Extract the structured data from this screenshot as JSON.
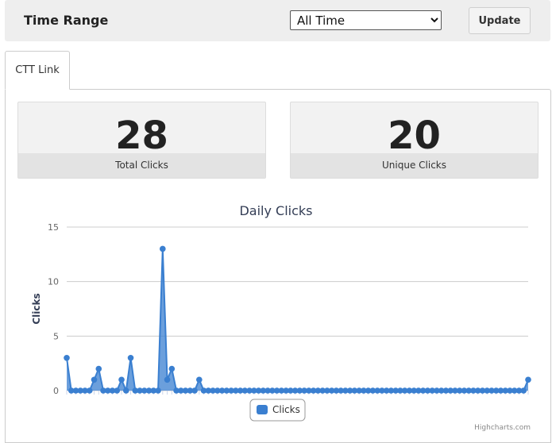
{
  "header": {
    "title": "Time Range",
    "range_selected": "All Time",
    "update_label": "Update"
  },
  "tabs": [
    {
      "label": "CTT Link"
    }
  ],
  "stats": {
    "total": {
      "value": "28",
      "label": "Total Clicks"
    },
    "unique": {
      "value": "20",
      "label": "Unique Clicks"
    }
  },
  "colors": {
    "series": "#3a7fd0",
    "fill": "#3a7fd0"
  },
  "chart_data": {
    "type": "area",
    "title": "Daily Clicks",
    "xlabel": "",
    "ylabel": "Clicks",
    "ylim": [
      0,
      15
    ],
    "yticks": [
      0,
      5,
      10,
      15
    ],
    "grid": true,
    "legend": "bottom-center",
    "credit": "Highcharts.com",
    "series": [
      {
        "name": "Clicks",
        "values": [
          3,
          0,
          0,
          0,
          0,
          0,
          1,
          2,
          0,
          0,
          0,
          0,
          1,
          0,
          3,
          0,
          0,
          0,
          0,
          0,
          0,
          13,
          1,
          2,
          0,
          0,
          0,
          0,
          0,
          1,
          0,
          0,
          0,
          0,
          0,
          0,
          0,
          0,
          0,
          0,
          0,
          0,
          0,
          0,
          0,
          0,
          0,
          0,
          0,
          0,
          0,
          0,
          0,
          0,
          0,
          0,
          0,
          0,
          0,
          0,
          0,
          0,
          0,
          0,
          0,
          0,
          0,
          0,
          0,
          0,
          0,
          0,
          0,
          0,
          0,
          0,
          0,
          0,
          0,
          0,
          0,
          0,
          0,
          0,
          0,
          0,
          0,
          0,
          0,
          0,
          0,
          0,
          0,
          0,
          0,
          0,
          0,
          0,
          0,
          0,
          0,
          1
        ]
      }
    ]
  }
}
